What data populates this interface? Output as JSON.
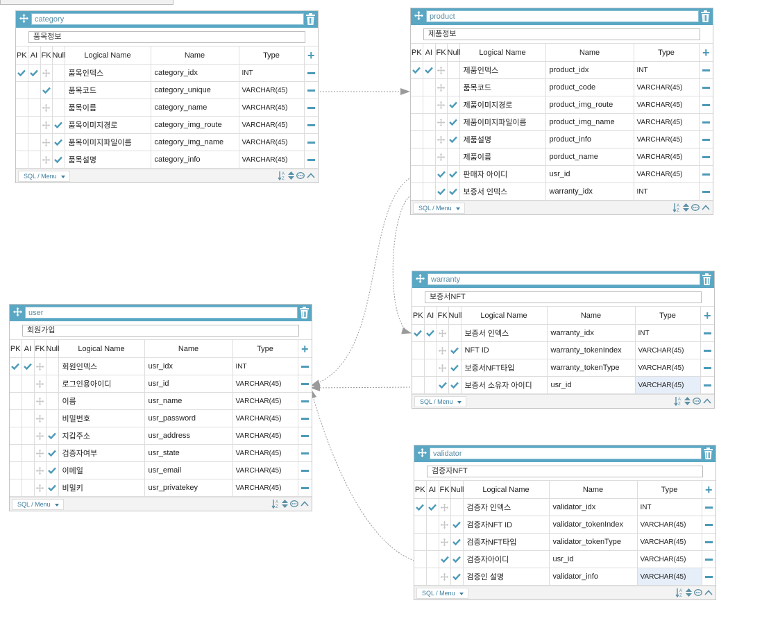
{
  "header_labels": {
    "pk": "PK",
    "ai": "AI",
    "fk": "FK",
    "null": "Null",
    "logical": "Logical Name",
    "name": "Name",
    "type": "Type"
  },
  "footer": {
    "menu_label": "SQL / Menu"
  },
  "colors": {
    "header_bg": "#5aa7c4",
    "check": "#4d9ab8",
    "grip": "#bdbdbd",
    "link": "#999999"
  },
  "icons": {
    "move": "move-icon",
    "trash": "trash-icon",
    "add": "add-column-icon",
    "remove": "remove-column-icon",
    "check": "checkmark-icon",
    "grip": "drag-grip-icon"
  },
  "tables": [
    {
      "id": "category",
      "name": "category",
      "comment": "품목정보",
      "rows": [
        {
          "pk": true,
          "ai": true,
          "fk": false,
          "nn": false,
          "logical": "품목인덱스",
          "col": "category_idx",
          "type": "INT"
        },
        {
          "pk": false,
          "ai": true,
          "fk": false,
          "nn": false,
          "logical": "품목코드",
          "col": "category_unique",
          "type": "VARCHAR(45)",
          "ai_only": true
        },
        {
          "pk": false,
          "ai": false,
          "fk": false,
          "nn": false,
          "logical": "품목이름",
          "col": "category_name",
          "type": "VARCHAR(45)"
        },
        {
          "pk": false,
          "ai": false,
          "fk": false,
          "nn": true,
          "logical": "품목이미지경로",
          "col": "category_img_route",
          "type": "VARCHAR(45)"
        },
        {
          "pk": false,
          "ai": false,
          "fk": false,
          "nn": true,
          "logical": "품목이미지파일이름",
          "col": "category_img_name",
          "type": "VARCHAR(45)"
        },
        {
          "pk": false,
          "ai": false,
          "fk": false,
          "nn": true,
          "logical": "품목설명",
          "col": "category_info",
          "type": "VARCHAR(45)"
        }
      ]
    },
    {
      "id": "product",
      "name": "product",
      "comment": "제품정보",
      "rows": [
        {
          "pk": true,
          "ai": true,
          "fk": false,
          "nn": false,
          "logical": "제품인덱스",
          "col": "product_idx",
          "type": "INT"
        },
        {
          "pk": false,
          "ai": false,
          "fk": false,
          "nn": false,
          "logical": "품목코드",
          "col": "product_code",
          "type": "VARCHAR(45)"
        },
        {
          "pk": false,
          "ai": false,
          "fk": false,
          "nn": true,
          "logical": "제품이미지경로",
          "col": "product_img_route",
          "type": "VARCHAR(45)"
        },
        {
          "pk": false,
          "ai": false,
          "fk": false,
          "nn": true,
          "logical": "제품이미지파일이름",
          "col": "product_img_name",
          "type": "VARCHAR(45)"
        },
        {
          "pk": false,
          "ai": false,
          "fk": false,
          "nn": true,
          "logical": "제품설명",
          "col": "product_info",
          "type": "VARCHAR(45)"
        },
        {
          "pk": false,
          "ai": false,
          "fk": false,
          "nn": false,
          "logical": "제품이름",
          "col": "porduct_name",
          "type": "VARCHAR(45)"
        },
        {
          "pk": false,
          "ai": false,
          "fk": true,
          "nn": true,
          "logical": "판매자 아이디",
          "col": "usr_id",
          "type": "VARCHAR(45)"
        },
        {
          "pk": false,
          "ai": false,
          "fk": true,
          "nn": true,
          "logical": "보증서 인덱스",
          "col": "warranty_idx",
          "type": "INT"
        }
      ]
    },
    {
      "id": "warranty",
      "name": "warranty",
      "comment": "보증서NFT",
      "rows": [
        {
          "pk": true,
          "ai": true,
          "fk": false,
          "nn": false,
          "logical": "보증서 인덱스",
          "col": "warranty_idx",
          "type": "INT"
        },
        {
          "pk": false,
          "ai": false,
          "fk": false,
          "nn": true,
          "logical": "NFT ID",
          "col": "warranty_tokenIndex",
          "type": "VARCHAR(45)"
        },
        {
          "pk": false,
          "ai": false,
          "fk": false,
          "nn": true,
          "logical": "보증서NFT타입",
          "col": "warranty_tokenType",
          "type": "VARCHAR(45)"
        },
        {
          "pk": false,
          "ai": false,
          "fk": true,
          "nn": true,
          "logical": "보증서 소유자 아이디",
          "col": "usr_id",
          "type": "VARCHAR(45)",
          "sel": true
        }
      ]
    },
    {
      "id": "user",
      "name": "user",
      "comment": "회원가입",
      "rows": [
        {
          "pk": true,
          "ai": true,
          "fk": false,
          "nn": false,
          "logical": "회원인덱스",
          "col": "usr_idx",
          "type": "INT"
        },
        {
          "pk": false,
          "ai": false,
          "fk": false,
          "nn": false,
          "logical": "로그인용아이디",
          "col": "usr_id",
          "type": "VARCHAR(45)"
        },
        {
          "pk": false,
          "ai": false,
          "fk": false,
          "nn": false,
          "logical": "이름",
          "col": "usr_name",
          "type": "VARCHAR(45)"
        },
        {
          "pk": false,
          "ai": false,
          "fk": false,
          "nn": false,
          "logical": "비밀번호",
          "col": "usr_password",
          "type": "VARCHAR(45)"
        },
        {
          "pk": false,
          "ai": false,
          "fk": false,
          "nn": true,
          "logical": "지갑주소",
          "col": "usr_address",
          "type": "VARCHAR(45)"
        },
        {
          "pk": false,
          "ai": false,
          "fk": false,
          "nn": true,
          "logical": "검증자여부",
          "col": "usr_state",
          "type": "VARCHAR(45)"
        },
        {
          "pk": false,
          "ai": false,
          "fk": false,
          "nn": true,
          "logical": "이메일",
          "col": "usr_email",
          "type": "VARCHAR(45)"
        },
        {
          "pk": false,
          "ai": false,
          "fk": false,
          "nn": true,
          "logical": "비밀키",
          "col": "usr_privatekey",
          "type": "VARCHAR(45)"
        }
      ]
    },
    {
      "id": "validator",
      "name": "validator",
      "comment": "검증자NFT",
      "rows": [
        {
          "pk": true,
          "ai": true,
          "fk": false,
          "nn": false,
          "logical": "검증자 인덱스",
          "col": "validator_idx",
          "type": "INT"
        },
        {
          "pk": false,
          "ai": false,
          "fk": false,
          "nn": true,
          "logical": "검증자NFT ID",
          "col": "validator_tokenIndex",
          "type": "VARCHAR(45)"
        },
        {
          "pk": false,
          "ai": false,
          "fk": false,
          "nn": true,
          "logical": "검증자NFT타입",
          "col": "validator_tokenType",
          "type": "VARCHAR(45)"
        },
        {
          "pk": false,
          "ai": false,
          "fk": true,
          "nn": true,
          "logical": "검증자아이디",
          "col": "usr_id",
          "type": "VARCHAR(45)"
        },
        {
          "pk": false,
          "ai": false,
          "fk": false,
          "nn": true,
          "logical": "검증인 설명",
          "col": "validator_info",
          "type": "VARCHAR(45)",
          "sel": true
        }
      ]
    }
  ]
}
